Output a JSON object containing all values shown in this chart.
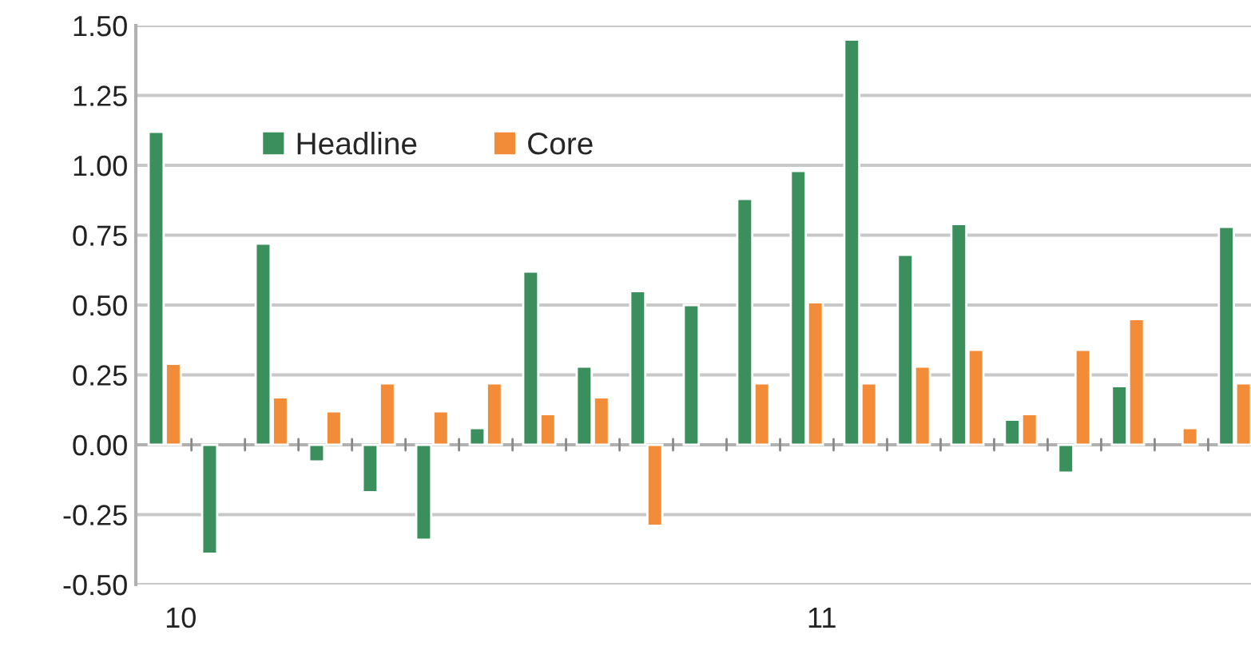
{
  "chart_data": {
    "type": "bar",
    "categories": [
      "10",
      null,
      null,
      null,
      null,
      null,
      null,
      null,
      null,
      null,
      null,
      null,
      "11",
      null,
      null,
      null,
      null,
      null,
      null,
      null,
      null
    ],
    "series": [
      {
        "name": "Headline",
        "color": "#3a8f5c",
        "values": [
          1.12,
          -0.39,
          0.72,
          -0.06,
          -0.17,
          -0.34,
          0.06,
          0.62,
          0.28,
          0.55,
          0.5,
          0.88,
          0.98,
          1.45,
          0.68,
          0.79,
          0.09,
          -0.1,
          0.21,
          null,
          0.78
        ]
      },
      {
        "name": "Core",
        "color": "#f28c38",
        "values": [
          0.29,
          null,
          0.17,
          0.12,
          0.22,
          0.12,
          0.22,
          0.11,
          0.17,
          -0.29,
          null,
          0.22,
          0.51,
          0.22,
          0.28,
          0.34,
          0.11,
          0.34,
          0.45,
          0.06,
          0.22
        ]
      }
    ],
    "ylim": [
      -0.5,
      1.5
    ],
    "yticks": [
      {
        "value": -0.5,
        "label": "-0.50"
      },
      {
        "value": -0.25,
        "label": "-0.25"
      },
      {
        "value": 0,
        "label": "0.00"
      },
      {
        "value": 0.25,
        "label": "0.25"
      },
      {
        "value": 0.5,
        "label": "0.50"
      },
      {
        "value": 0.75,
        "label": "0.75"
      },
      {
        "value": 1.0,
        "label": "1.00"
      },
      {
        "value": 1.25,
        "label": "1.25"
      },
      {
        "value": 1.5,
        "label": "1.50"
      }
    ],
    "grid": "y",
    "legend": "top left"
  }
}
